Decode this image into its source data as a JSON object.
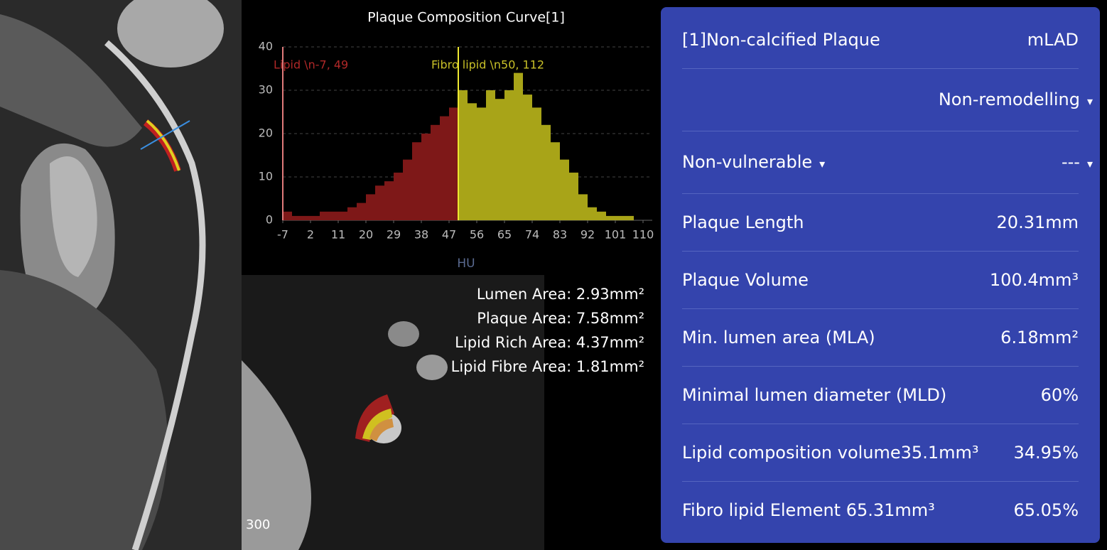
{
  "chart_data": {
    "type": "histogram",
    "title": "Plaque Composition Curve[1]",
    "x_label": "HU",
    "bins": [
      -7,
      -4,
      -1,
      2,
      5,
      8,
      11,
      14,
      17,
      20,
      23,
      26,
      29,
      32,
      35,
      38,
      41,
      44,
      47,
      50,
      53,
      56,
      59,
      62,
      65,
      68,
      71,
      74,
      77,
      80,
      83,
      86,
      89,
      92,
      95,
      98,
      101,
      104,
      107,
      110,
      113
    ],
    "values": [
      2,
      1,
      1,
      1,
      2,
      2,
      2,
      3,
      4,
      6,
      8,
      9,
      11,
      14,
      18,
      20,
      22,
      24,
      26,
      30,
      27,
      26,
      30,
      28,
      30,
      34,
      29,
      26,
      22,
      18,
      14,
      11,
      6,
      3,
      2,
      1,
      1,
      1,
      0,
      0
    ],
    "xlim": [
      -7,
      113
    ],
    "xticks": [
      -7,
      2,
      11,
      20,
      29,
      38,
      47,
      56,
      65,
      74,
      83,
      92,
      101,
      110
    ],
    "ylim": [
      0,
      40
    ],
    "yticks": [
      0,
      10,
      20,
      30,
      40
    ],
    "grid": true,
    "annotations": [
      {
        "text": "Lipid \\n-7, 49",
        "x": -7,
        "color": "#7e1818",
        "line_color": "#e07a7a",
        "text_color": "#b02828"
      },
      {
        "text": "Fibro lipid \\n50, 112",
        "x": 50,
        "color": "#a8a418",
        "line_color": "#eee830",
        "text_color": "#c8c028"
      }
    ]
  },
  "cross_section": {
    "measurements": [
      "Lumen Area: 2.93mm²",
      "Plaque Area: 7.58mm²",
      "Lipid Rich Area: 4.37mm²",
      "Lipid Fibre Area: 1.81mm²"
    ],
    "window": "300"
  },
  "panel": {
    "title": "[1]Non-calcified Plaque",
    "segment": "mLAD",
    "remodelling": "Non-remodelling",
    "vulnerability": "Non-vulnerable",
    "vulnerability_detail": "---",
    "rows": [
      [
        "Plaque Length",
        "20.31mm"
      ],
      [
        "Plaque Volume",
        "100.4mm³"
      ],
      [
        "Min. lumen area (MLA)",
        "6.18mm²"
      ],
      [
        "Minimal lumen diameter (MLD)",
        "60%"
      ],
      [
        "Lipid composition volume35.1mm³",
        "34.95%"
      ],
      [
        "Fibro lipid Element 65.31mm³",
        "65.05%"
      ]
    ]
  }
}
